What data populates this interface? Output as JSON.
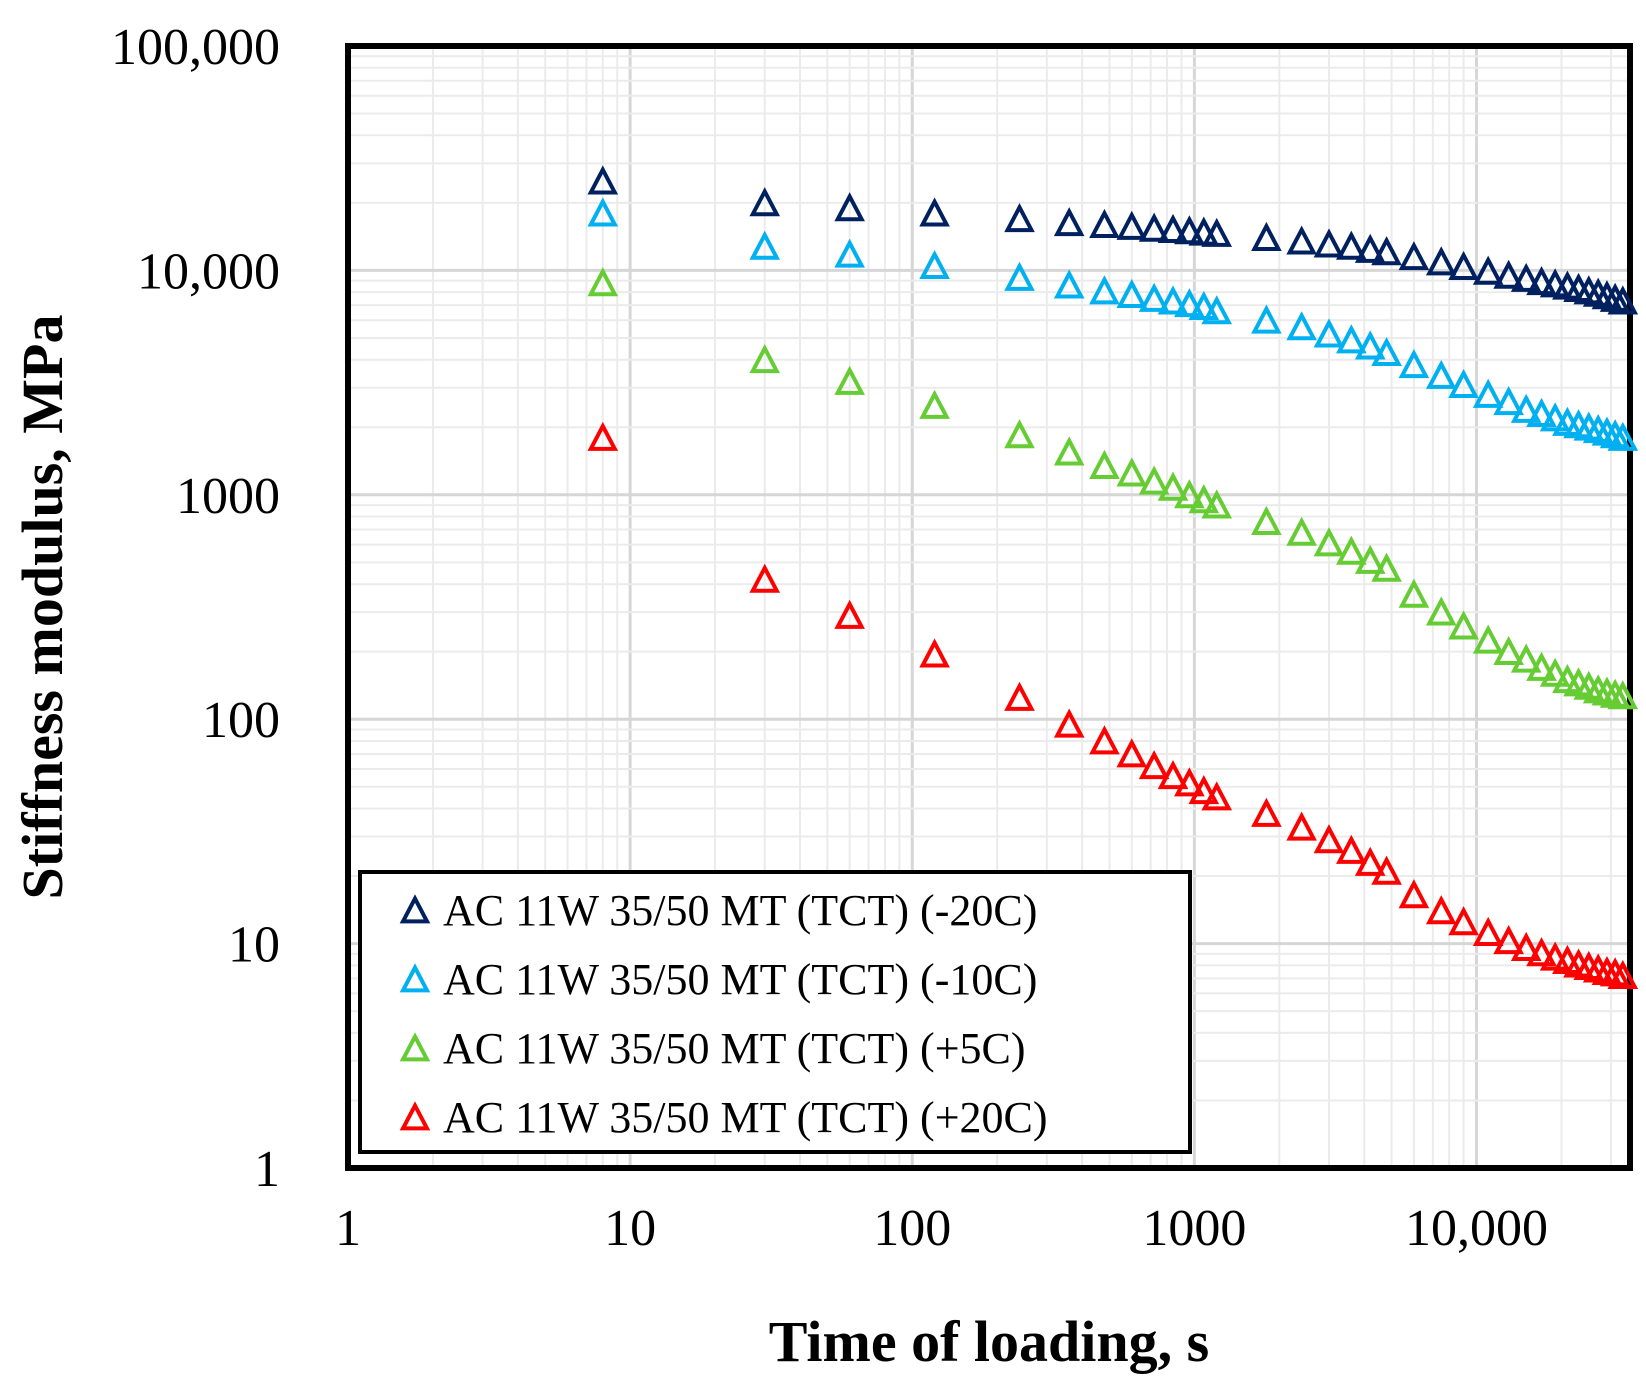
{
  "chart_data": {
    "type": "scatter",
    "xlabel": "Time of loading, s",
    "ylabel": "Stiffness modulus, MPa",
    "xscale": "log",
    "yscale": "log",
    "xlim": [
      1,
      35000
    ],
    "ylim": [
      1,
      100000
    ],
    "x_ticks": [
      {
        "value": 1,
        "label": "1"
      },
      {
        "value": 10,
        "label": "10"
      },
      {
        "value": 100,
        "label": "100"
      },
      {
        "value": 1000,
        "label": "1000"
      },
      {
        "value": 10000,
        "label": "10,000"
      }
    ],
    "y_ticks": [
      {
        "value": 1,
        "label": "1"
      },
      {
        "value": 10,
        "label": "10"
      },
      {
        "value": 100,
        "label": "100"
      },
      {
        "value": 1000,
        "label": "1000"
      },
      {
        "value": 10000,
        "label": "10,000"
      },
      {
        "value": 100000,
        "label": "100,000"
      }
    ],
    "grid": true,
    "legend_position": "bottom-left",
    "x": [
      8,
      30,
      60,
      120,
      240,
      360,
      480,
      600,
      720,
      840,
      960,
      1080,
      1200,
      1800,
      2400,
      3000,
      3600,
      4200,
      4800,
      6000,
      7500,
      9000,
      11000,
      13000,
      15000,
      17000,
      19000,
      21000,
      23000,
      25000,
      27000,
      29000,
      31000,
      33000
    ],
    "series": [
      {
        "name": "AC 11W 35/50 MT (TCT) (-20C)",
        "color": "#002060",
        "values": [
          25000,
          20000,
          19000,
          18000,
          17000,
          16300,
          16000,
          15700,
          15400,
          15200,
          15000,
          14800,
          14600,
          14000,
          13500,
          13100,
          12800,
          12400,
          12100,
          11500,
          10900,
          10400,
          9900,
          9500,
          9200,
          8900,
          8700,
          8500,
          8300,
          8100,
          7900,
          7700,
          7500,
          7300
        ]
      },
      {
        "name": "AC 11W 35/50 MT (TCT) (-10C)",
        "color": "#00B0F0",
        "values": [
          18000,
          12800,
          11800,
          10500,
          9300,
          8600,
          8100,
          7800,
          7500,
          7300,
          7100,
          6900,
          6600,
          6000,
          5600,
          5200,
          4900,
          4600,
          4300,
          3800,
          3400,
          3100,
          2800,
          2600,
          2400,
          2300,
          2200,
          2100,
          2050,
          2000,
          1950,
          1900,
          1850,
          1800
        ]
      },
      {
        "name": "AC 11W 35/50 MT (TCT) (+5C)",
        "color": "#66CC33",
        "values": [
          8800,
          4000,
          3200,
          2500,
          1850,
          1550,
          1350,
          1250,
          1150,
          1080,
          1000,
          950,
          900,
          760,
          680,
          610,
          560,
          510,
          470,
          360,
          300,
          260,
          225,
          200,
          185,
          170,
          160,
          150,
          145,
          140,
          135,
          132,
          129,
          127
        ]
      },
      {
        "name": "AC 11W 35/50 MT (TCT) (+20C)",
        "color": "#FF0000",
        "values": [
          1800,
          420,
          290,
          195,
          125,
          95,
          80,
          70,
          62,
          56,
          52,
          48,
          45,
          38,
          33,
          29,
          26,
          23,
          21,
          16.5,
          14,
          12.5,
          11.2,
          10.3,
          9.6,
          9.1,
          8.7,
          8.4,
          8.1,
          7.9,
          7.7,
          7.5,
          7.4,
          7.2
        ]
      }
    ]
  }
}
